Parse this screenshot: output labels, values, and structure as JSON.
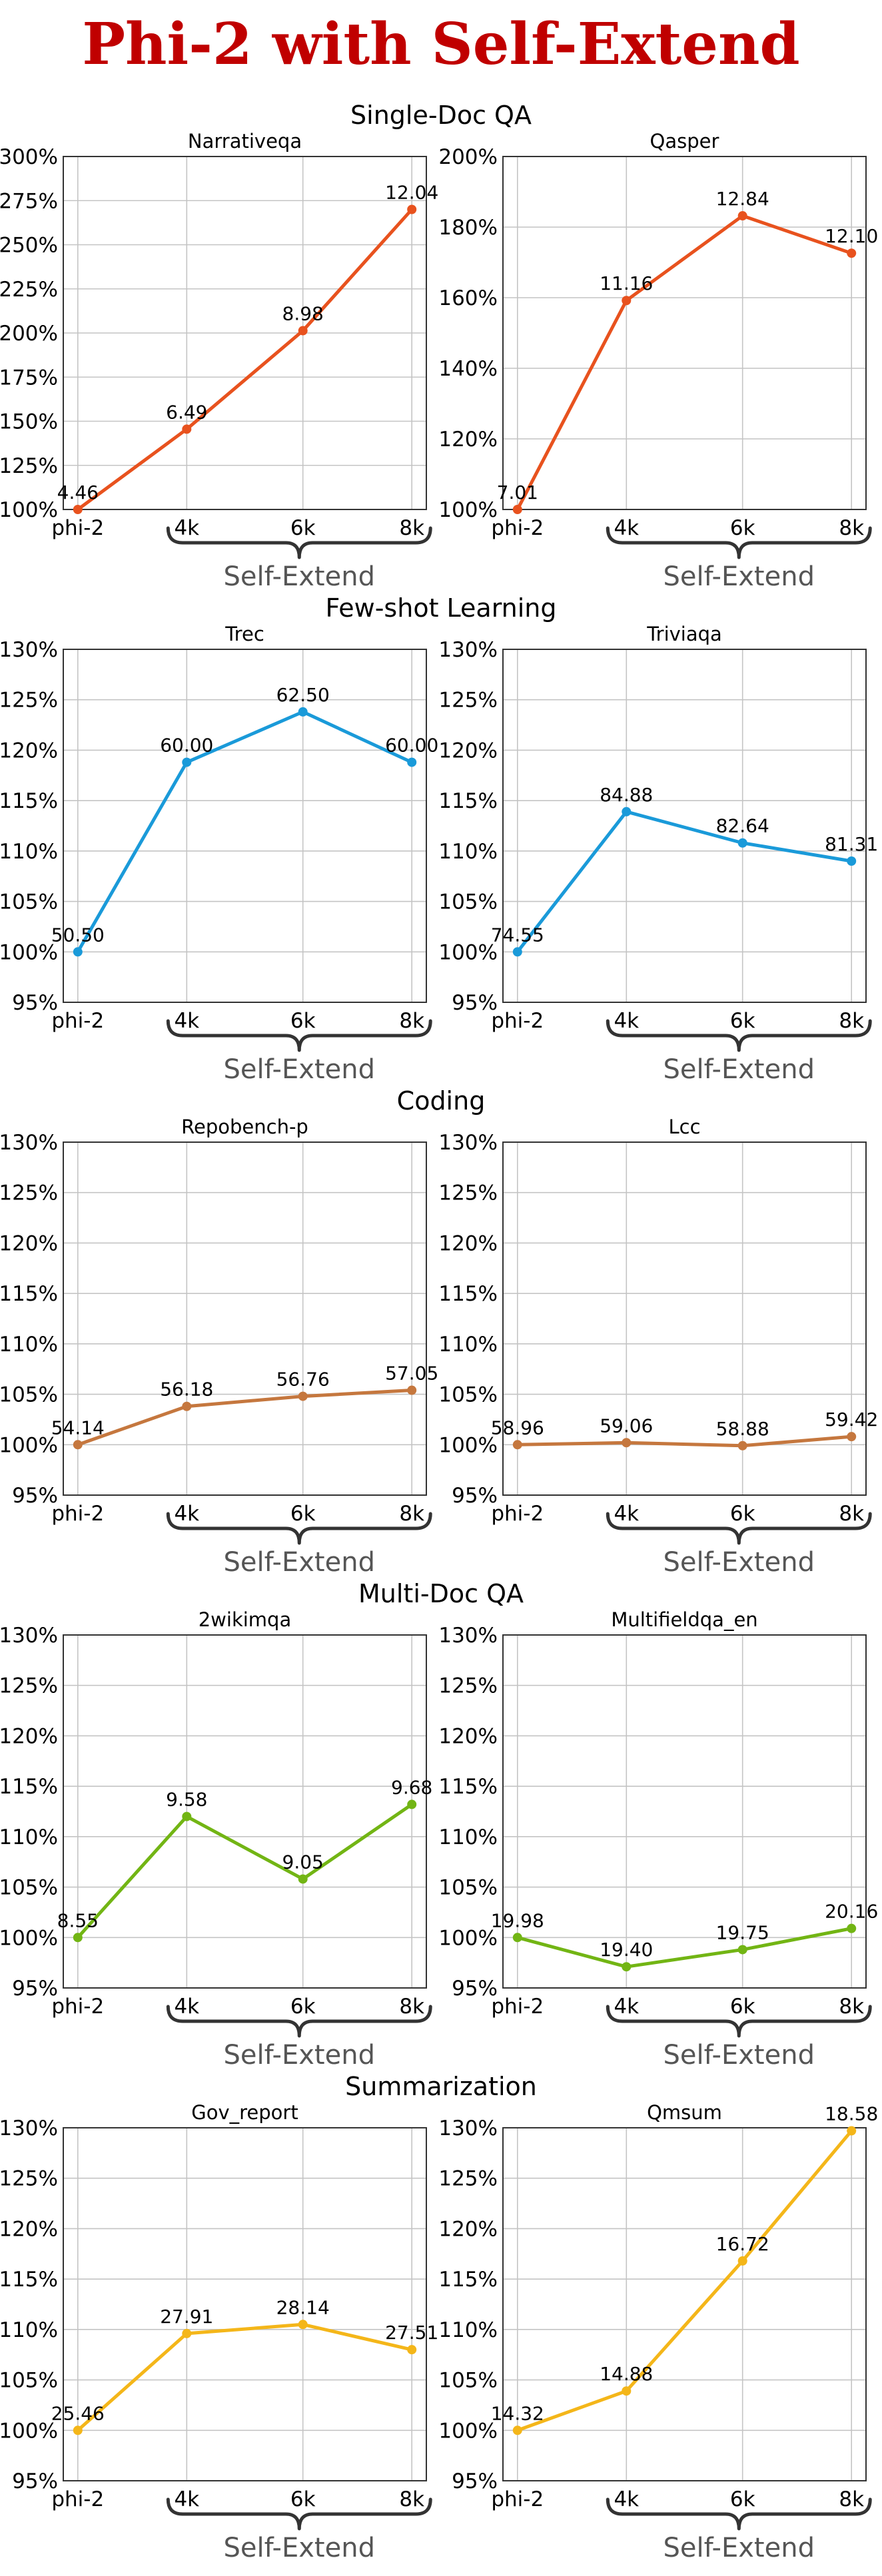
{
  "title": "Phi-2 with Self-Extend",
  "group_label": "Self-Extend",
  "x_ticks": [
    "phi-2",
    "4k",
    "6k",
    "8k"
  ],
  "sections": [
    {
      "title": "Single-Doc QA",
      "charts": [
        0,
        1
      ]
    },
    {
      "title": "Few-shot Learning",
      "charts": [
        2,
        3
      ]
    },
    {
      "title": "Coding",
      "charts": [
        4,
        5
      ]
    },
    {
      "title": "Multi-Doc QA",
      "charts": [
        6,
        7
      ]
    },
    {
      "title": "Summarization",
      "charts": [
        8,
        9
      ]
    }
  ],
  "chart_data": [
    {
      "type": "line",
      "title": "Narrativeqa",
      "categories": [
        "phi-2",
        "4k",
        "6k",
        "8k"
      ],
      "values": [
        100,
        145.5,
        201.3,
        270.0
      ],
      "labels": [
        "4.46",
        "6.49",
        "8.98",
        "12.04"
      ],
      "ylim": [
        100,
        300
      ],
      "yticks": [
        100,
        125,
        150,
        175,
        200,
        225,
        250,
        275,
        300
      ],
      "color": "#e8521e",
      "grid": true
    },
    {
      "type": "line",
      "title": "Qasper",
      "categories": [
        "phi-2",
        "4k",
        "6k",
        "8k"
      ],
      "values": [
        100,
        159.2,
        183.2,
        172.6
      ],
      "labels": [
        "7.01",
        "11.16",
        "12.84",
        "12.10"
      ],
      "ylim": [
        100,
        200
      ],
      "yticks": [
        100,
        120,
        140,
        160,
        180,
        200
      ],
      "color": "#e8521e",
      "grid": true
    },
    {
      "type": "line",
      "title": "Trec",
      "categories": [
        "phi-2",
        "4k",
        "6k",
        "8k"
      ],
      "values": [
        100,
        118.8,
        123.8,
        118.8
      ],
      "labels": [
        "50.50",
        "60.00",
        "62.50",
        "60.00"
      ],
      "ylim": [
        95,
        130
      ],
      "yticks": [
        95,
        100,
        105,
        110,
        115,
        120,
        125,
        130
      ],
      "color": "#1a9ad9",
      "grid": true
    },
    {
      "type": "line",
      "title": "Triviaqa",
      "categories": [
        "phi-2",
        "4k",
        "6k",
        "8k"
      ],
      "values": [
        100,
        113.9,
        110.8,
        109.0
      ],
      "labels": [
        "74.55",
        "84.88",
        "82.64",
        "81.31"
      ],
      "ylim": [
        95,
        130
      ],
      "yticks": [
        95,
        100,
        105,
        110,
        115,
        120,
        125,
        130
      ],
      "color": "#1a9ad9",
      "grid": true
    },
    {
      "type": "line",
      "title": "Repobench-p",
      "categories": [
        "phi-2",
        "4k",
        "6k",
        "8k"
      ],
      "values": [
        100,
        103.8,
        104.8,
        105.4
      ],
      "labels": [
        "54.14",
        "56.18",
        "56.76",
        "57.05"
      ],
      "ylim": [
        95,
        130
      ],
      "yticks": [
        95,
        100,
        105,
        110,
        115,
        120,
        125,
        130
      ],
      "color": "#c5773e",
      "grid": true
    },
    {
      "type": "line",
      "title": "Lcc",
      "categories": [
        "phi-2",
        "4k",
        "6k",
        "8k"
      ],
      "values": [
        100,
        100.2,
        99.9,
        100.8
      ],
      "labels": [
        "58.96",
        "59.06",
        "58.88",
        "59.42"
      ],
      "ylim": [
        95,
        130
      ],
      "yticks": [
        95,
        100,
        105,
        110,
        115,
        120,
        125,
        130
      ],
      "color": "#c5773e",
      "grid": true
    },
    {
      "type": "line",
      "title": "2wikimqa",
      "categories": [
        "phi-2",
        "4k",
        "6k",
        "8k"
      ],
      "values": [
        100,
        112.0,
        105.8,
        113.2
      ],
      "labels": [
        "8.55",
        "9.58",
        "9.05",
        "9.68"
      ],
      "ylim": [
        95,
        130
      ],
      "yticks": [
        95,
        100,
        105,
        110,
        115,
        120,
        125,
        130
      ],
      "color": "#72b514",
      "grid": true
    },
    {
      "type": "line",
      "title": "Multifieldqa_en",
      "categories": [
        "phi-2",
        "4k",
        "6k",
        "8k"
      ],
      "values": [
        100,
        97.1,
        98.8,
        100.9
      ],
      "labels": [
        "19.98",
        "19.40",
        "19.75",
        "20.16"
      ],
      "ylim": [
        95,
        130
      ],
      "yticks": [
        95,
        100,
        105,
        110,
        115,
        120,
        125,
        130
      ],
      "color": "#72b514",
      "grid": true
    },
    {
      "type": "line",
      "title": "Gov_report",
      "categories": [
        "phi-2",
        "4k",
        "6k",
        "8k"
      ],
      "values": [
        100,
        109.6,
        110.5,
        108.0
      ],
      "labels": [
        "25.46",
        "27.91",
        "28.14",
        "27.51"
      ],
      "ylim": [
        95,
        130
      ],
      "yticks": [
        95,
        100,
        105,
        110,
        115,
        120,
        125,
        130
      ],
      "color": "#f4b619",
      "grid": true
    },
    {
      "type": "line",
      "title": "Qmsum",
      "categories": [
        "phi-2",
        "4k",
        "6k",
        "8k"
      ],
      "values": [
        100,
        103.9,
        116.8,
        129.7
      ],
      "labels": [
        "14.32",
        "14.88",
        "16.72",
        "18.58"
      ],
      "ylim": [
        95,
        130
      ],
      "yticks": [
        95,
        100,
        105,
        110,
        115,
        120,
        125,
        130
      ],
      "color": "#f4b619",
      "grid": true
    }
  ]
}
